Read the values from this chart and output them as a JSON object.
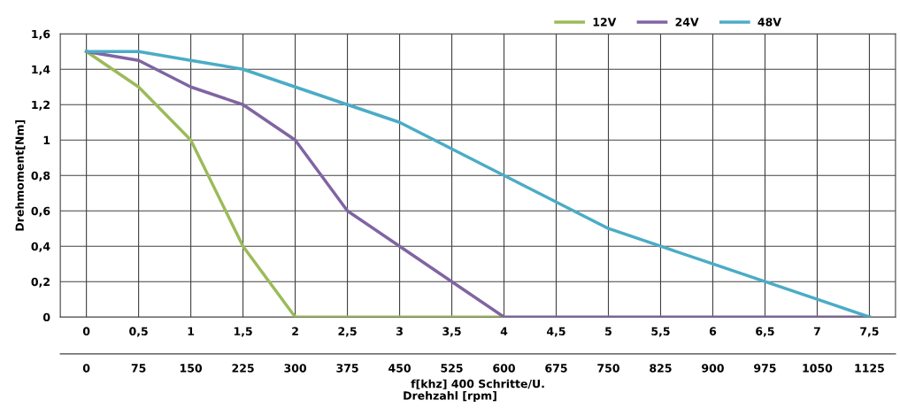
{
  "chart_data": {
    "type": "line",
    "series": [
      {
        "name": "12V",
        "color": "#9bbb59",
        "x": [
          0,
          0.5,
          1,
          1.5,
          2,
          2.5,
          3,
          3.5,
          4
        ],
        "values": [
          1.5,
          1.3,
          1.0,
          0.4,
          0,
          0,
          0,
          0,
          0
        ]
      },
      {
        "name": "24V",
        "color": "#8064a2",
        "x": [
          0,
          0.5,
          1,
          1.5,
          2,
          2.5,
          3,
          3.5,
          4,
          4.5,
          5,
          5.5,
          6,
          6.5,
          7,
          7.5
        ],
        "values": [
          1.5,
          1.45,
          1.3,
          1.2,
          1.0,
          0.6,
          0.4,
          0.2,
          0,
          0,
          0,
          0,
          0,
          0,
          0,
          0
        ]
      },
      {
        "name": "48V",
        "color": "#4bacc6",
        "x": [
          0,
          0.5,
          1,
          1.5,
          2,
          2.5,
          3,
          3.5,
          4,
          4.5,
          5,
          5.5,
          6,
          6.5,
          7,
          7.5
        ],
        "values": [
          1.5,
          1.5,
          1.45,
          1.4,
          1.3,
          1.2,
          1.1,
          0.95,
          0.8,
          0.65,
          0.5,
          0.4,
          0.3,
          0.2,
          0.1,
          0
        ]
      }
    ],
    "xlabel": "f[khz] 400 Schritte/U.",
    "x2label": "Drehzahl [rpm]",
    "ylabel": "Drehmoment[Nm]",
    "xlim": [
      -0.25,
      7.75
    ],
    "xticks": [
      0,
      {
        "value": 0.5,
        "label": "0,5"
      },
      1,
      {
        "value": 1.5,
        "label": "1,5"
      },
      2,
      {
        "value": 2.5,
        "label": "2,5"
      },
      3,
      {
        "value": 3.5,
        "label": "3,5"
      },
      4,
      {
        "value": 4.5,
        "label": "4,5"
      },
      5,
      {
        "value": 5.5,
        "label": "5,5"
      },
      6,
      {
        "value": 6.5,
        "label": "6,5"
      },
      7,
      {
        "value": 7.5,
        "label": "7,5"
      }
    ],
    "x2lim": [
      -37.5,
      1162.5
    ],
    "x2ticks": [
      0,
      75,
      150,
      225,
      300,
      375,
      450,
      525,
      600,
      675,
      750,
      825,
      900,
      975,
      1050,
      1125
    ],
    "ylim": [
      0,
      1.6
    ],
    "yticks": [
      0,
      {
        "value": 0.2,
        "label": "0,2"
      },
      {
        "value": 0.4,
        "label": "0,4"
      },
      {
        "value": 0.6,
        "label": "0,6"
      },
      {
        "value": 0.8,
        "label": "0,8"
      },
      1,
      {
        "value": 1.2,
        "label": "1,2"
      },
      {
        "value": 1.4,
        "label": "1,4"
      },
      {
        "value": 1.6,
        "label": "1,6"
      }
    ],
    "grid": true,
    "legend": "top right",
    "marker": "none",
    "line_style": "solid"
  }
}
